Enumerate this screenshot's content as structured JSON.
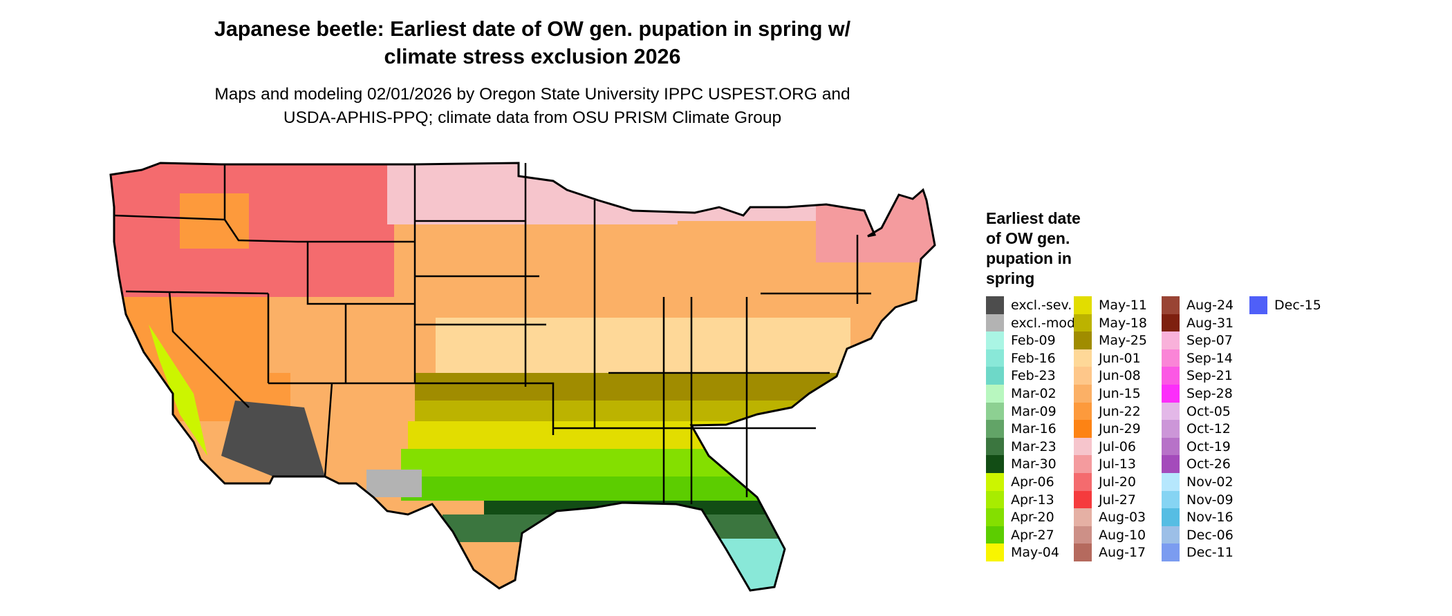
{
  "title": "Japanese beetle: Earliest date of OW gen. pupation in spring w/\nclimate stress exclusion 2026",
  "subtitle": "Maps and modeling 02/01/2026 by Oregon State University IPPC USPEST.ORG and\nUSDA-APHIS-PPQ; climate data from OSU PRISM Climate Group",
  "legend": {
    "title": "Earliest date\nof OW gen.\npupation in\nspring",
    "columns": 4,
    "rows_per_column": 15,
    "items": [
      {
        "label": "excl.-sev.",
        "color": "#4d4d4d"
      },
      {
        "label": "excl.-mod.",
        "color": "#b3b3b3"
      },
      {
        "label": "Feb-09",
        "color": "#aaf5e4"
      },
      {
        "label": "Feb-16",
        "color": "#89e8d8"
      },
      {
        "label": "Feb-23",
        "color": "#6ed8c8"
      },
      {
        "label": "Mar-02",
        "color": "#b8f7bf"
      },
      {
        "label": "Mar-09",
        "color": "#8dd092"
      },
      {
        "label": "Mar-16",
        "color": "#62a467"
      },
      {
        "label": "Mar-23",
        "color": "#3b763f"
      },
      {
        "label": "Mar-30",
        "color": "#124d15"
      },
      {
        "label": "Apr-06",
        "color": "#ccf500"
      },
      {
        "label": "Apr-13",
        "color": "#a8ec00"
      },
      {
        "label": "Apr-20",
        "color": "#84df00"
      },
      {
        "label": "Apr-27",
        "color": "#5ccd00"
      },
      {
        "label": "May-04",
        "color": "#f9f500"
      },
      {
        "label": "May-11",
        "color": "#e2dd00"
      },
      {
        "label": "May-18",
        "color": "#bcb300"
      },
      {
        "label": "May-25",
        "color": "#a08c00"
      },
      {
        "label": "Jun-01",
        "color": "#fed898"
      },
      {
        "label": "Jun-08",
        "color": "#fec78a"
      },
      {
        "label": "Jun-15",
        "color": "#fbb066"
      },
      {
        "label": "Jun-22",
        "color": "#fd9a3c"
      },
      {
        "label": "Jun-29",
        "color": "#fd8314"
      },
      {
        "label": "Jul-06",
        "color": "#f6c5cc"
      },
      {
        "label": "Jul-13",
        "color": "#f49b9e"
      },
      {
        "label": "Jul-20",
        "color": "#f46b6e"
      },
      {
        "label": "Jul-27",
        "color": "#f53b3d"
      },
      {
        "label": "Aug-03",
        "color": "#e5b0a4"
      },
      {
        "label": "Aug-10",
        "color": "#cd9087"
      },
      {
        "label": "Aug-17",
        "color": "#b56a5e"
      },
      {
        "label": "Aug-24",
        "color": "#994434"
      },
      {
        "label": "Aug-31",
        "color": "#7e200f"
      },
      {
        "label": "Sep-07",
        "color": "#f9b1da"
      },
      {
        "label": "Sep-14",
        "color": "#fa85d7"
      },
      {
        "label": "Sep-21",
        "color": "#fb58e4"
      },
      {
        "label": "Sep-28",
        "color": "#fc2efa"
      },
      {
        "label": "Oct-05",
        "color": "#e3b8e8"
      },
      {
        "label": "Oct-12",
        "color": "#cc96d8"
      },
      {
        "label": "Oct-19",
        "color": "#b772c8"
      },
      {
        "label": "Oct-26",
        "color": "#a44bbb"
      },
      {
        "label": "Nov-02",
        "color": "#b6e7fd"
      },
      {
        "label": "Nov-09",
        "color": "#86d4f3"
      },
      {
        "label": "Nov-16",
        "color": "#56bde3"
      },
      {
        "label": "Dec-06",
        "color": "#9cbfe7"
      },
      {
        "label": "Dec-11",
        "color": "#7b9cf0"
      },
      {
        "label": "Dec-15",
        "color": "#4f5ff8"
      }
    ]
  },
  "colors": {
    "state_border": "#000000",
    "background": "#ffffff",
    "northwest_mountain": "#f46b6e",
    "northwest_valley": "#fd9a3c",
    "high_peak": "#ffffff",
    "upper_midwest": "#f6c5cc",
    "plains": "#fbb066",
    "central": "#fed898",
    "upper_south": "#a08c00",
    "mid_south": "#bcb300",
    "south": "#e2dd00",
    "lower_south": "#84df00",
    "deep_south": "#5ccd00",
    "gulf_coast": "#124d15",
    "gulf_coast_2": "#3b763f",
    "florida_tip": "#89e8d8",
    "southwest_desert": "#4d4d4d",
    "california_valley": "#ccf500",
    "west_plateau": "#fd9a3c",
    "northeast_mountain": "#f49b9e",
    "texas_west": "#b3b3b3"
  }
}
